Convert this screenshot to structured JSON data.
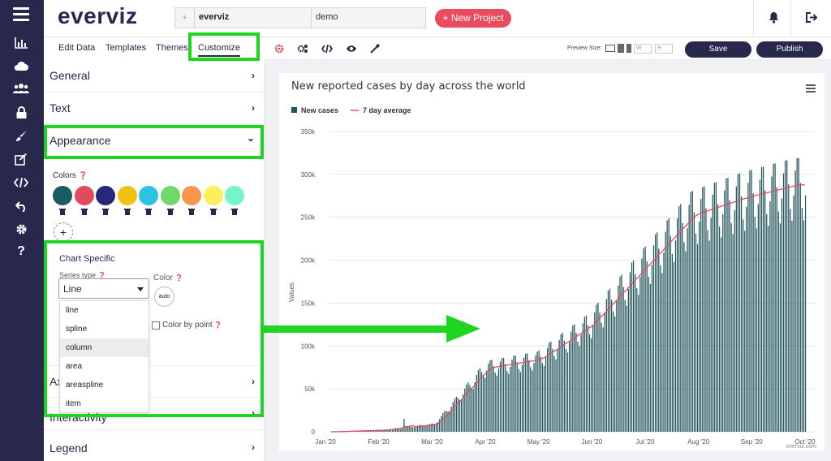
{
  "app": {
    "logo": "everviz"
  },
  "header": {
    "project_name": "everviz",
    "project_desc": "demo",
    "thumb_glyph": "+",
    "new_project_label": "+ New Project"
  },
  "editor_tabs": [
    {
      "label": "Edit Data"
    },
    {
      "label": "Templates"
    },
    {
      "label": "Themes"
    },
    {
      "label": "Customize"
    }
  ],
  "sections": {
    "general": "General",
    "text": "Text",
    "appearance": "Appearance",
    "axes": "Ax",
    "interactivity": "Interactivity",
    "legend": "Legend",
    "chevron_right": "›",
    "chevron_down": "⌄"
  },
  "appearance": {
    "colors_label": "Colors",
    "palette": [
      "#1d5b63",
      "#e14b5e",
      "#28287a",
      "#f1c213",
      "#2cc3e2",
      "#6fd86a",
      "#f7974a",
      "#fbf05a",
      "#74f6c8"
    ],
    "add_color": "+",
    "chart_specific_title": "Chart Specific",
    "series_type_label": "Series type",
    "series_type_value": "Line",
    "color_label": "Color",
    "auto_label": "auto",
    "color_by_point_label": "Color by point",
    "series_options": [
      "line",
      "spline",
      "column",
      "area",
      "areaspline",
      "item"
    ],
    "highlighted_option": "column"
  },
  "toolbar": {
    "preview_size_label": "Preview Size:",
    "w_placeholder": "W",
    "h_placeholder": "H",
    "save_label": "Save",
    "publish_label": "Publish"
  },
  "icons": {
    "rail": [
      "menu-icon",
      "bar-chart-icon",
      "cloud-icon",
      "users-icon",
      "lock-icon",
      "brush-icon",
      "edit-icon",
      "code-icon",
      "undo-icon",
      "gear-icon",
      "help-icon"
    ],
    "toolbar": [
      "settings-gear-icon",
      "cogs-icon",
      "code-icon",
      "eye-icon",
      "eyedropper-icon"
    ]
  },
  "chart_data": {
    "type": "bar",
    "title": "New reported cases by day across the world",
    "ylabel": "Values",
    "ylim": [
      0,
      350000
    ],
    "yticks": [
      0,
      50000,
      100000,
      150000,
      200000,
      250000,
      300000,
      350000
    ],
    "ytick_labels": [
      "0",
      "50k",
      "100k",
      "150k",
      "200k",
      "250k",
      "300k",
      "350k"
    ],
    "xtick_labels": [
      "Jan '20",
      "Feb '20",
      "Mar '20",
      "Apr '20",
      "May '20",
      "Jun '20",
      "Jul '20",
      "Aug '20",
      "Sep '20",
      "Oct '20"
    ],
    "legend_position": "top-left",
    "grid": true,
    "credits": "everviz.com",
    "bar_color": "#22555c",
    "line_color": "#e14b5e",
    "series": [
      {
        "name": "New cases",
        "type": "column",
        "monthly_levels": [
          0,
          2000,
          9000,
          75000,
          85000,
          125000,
          190000,
          255000,
          275000,
          290000
        ]
      },
      {
        "name": "7 day average",
        "type": "line",
        "monthly_levels": [
          0,
          2000,
          9000,
          75000,
          85000,
          125000,
          190000,
          255000,
          275000,
          290000
        ]
      }
    ]
  }
}
